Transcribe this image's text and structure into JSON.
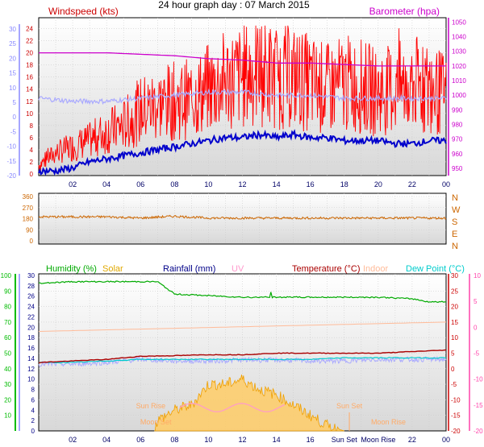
{
  "title": "24 hour graph day : 07 March 2015",
  "colors": {
    "wind": "#ff0000",
    "gust": "#ff0000",
    "baro": "#cc00cc",
    "temp_c": "#aaaaff",
    "dir": "#cc6600",
    "humidity": "#00aa00",
    "solar": "#e0a800",
    "rain": "#000088",
    "uv": "#ff99cc",
    "temperature": "#aa0000",
    "indoor": "#ffbb99",
    "dewpoint": "#00cccc",
    "avgwind": "#0000cc",
    "axis_blue": "#8888ff",
    "axis_green": "#00bb00",
    "axis_red": "#cc0000",
    "axis_pink": "#ff44aa",
    "axis_orange": "#cc6600",
    "moon": "#ffaa66"
  },
  "chart_data": [
    {
      "type": "line",
      "panel": "wind",
      "left_label": "Windspeed (kts)",
      "right_label": "Barometer (hpa)",
      "x_ticks": [
        "02",
        "04",
        "06",
        "08",
        "10",
        "12",
        "14",
        "16",
        "18",
        "20",
        "22",
        "00"
      ],
      "left_red_ticks": [
        0,
        2,
        4,
        6,
        8,
        10,
        12,
        14,
        16,
        18,
        20,
        22,
        24
      ],
      "left_blue_ticks": [
        -20,
        -15,
        -10,
        -5,
        0,
        5,
        10,
        15,
        20,
        25,
        30
      ],
      "right_ticks": [
        950,
        960,
        970,
        980,
        990,
        1000,
        1010,
        1020,
        1030,
        1040,
        1050
      ],
      "ylim_wind": [
        0,
        25
      ],
      "ylim_baro": [
        945,
        1053
      ],
      "series": [
        {
          "key": "gust",
          "hours": [
            0,
            1,
            2,
            3,
            4,
            5,
            6,
            7,
            8,
            9,
            10,
            11,
            12,
            13,
            14,
            15,
            16,
            17,
            18,
            19,
            20,
            21,
            22,
            23,
            24
          ],
          "values": [
            1.5,
            3.5,
            4.5,
            5.5,
            7,
            8,
            10.5,
            11.5,
            12,
            12.5,
            14,
            15.5,
            16,
            17,
            16,
            16,
            15,
            14,
            15,
            14.5,
            13.5,
            14,
            15,
            14,
            13
          ]
        },
        {
          "key": "avgwind",
          "hours": [
            0,
            1,
            2,
            3,
            4,
            5,
            6,
            7,
            8,
            9,
            10,
            11,
            12,
            13,
            14,
            15,
            16,
            17,
            18,
            19,
            20,
            21,
            22,
            23,
            24
          ],
          "values": [
            0.5,
            0.5,
            1,
            2,
            2.5,
            3,
            3.5,
            4,
            4.5,
            5,
            5.5,
            6,
            6,
            6.5,
            6,
            6.5,
            6,
            6,
            5.5,
            5.5,
            5.5,
            5,
            5,
            5.5,
            5.5
          ]
        },
        {
          "key": "baro",
          "hours": [
            0,
            2,
            4,
            6,
            8,
            10,
            12,
            14,
            16,
            18,
            20,
            22,
            24
          ],
          "values": [
            1029,
            1029,
            1029,
            1028,
            1027,
            1025,
            1024,
            1022,
            1022,
            1021,
            1020,
            1020,
            1020
          ]
        },
        {
          "key": "temp_c",
          "hours": [
            0,
            2,
            4,
            6,
            8,
            10,
            12,
            14,
            16,
            18,
            20,
            22,
            24
          ],
          "values": [
            12.5,
            12,
            12,
            12.5,
            13,
            13.5,
            13.5,
            13,
            13,
            12.5,
            12.5,
            12.5,
            12.5
          ]
        }
      ]
    },
    {
      "type": "line",
      "panel": "direction",
      "right_labels": [
        "N",
        "W",
        "S",
        "E",
        "N"
      ],
      "left_ticks": [
        0,
        90,
        180,
        270,
        360
      ],
      "ylim": [
        0,
        360
      ],
      "series": [
        {
          "key": "dir",
          "hours": [
            0,
            2,
            4,
            6,
            8,
            10,
            12,
            14,
            16,
            18,
            20,
            22,
            24
          ],
          "values": [
            195,
            195,
            195,
            185,
            200,
            185,
            185,
            185,
            185,
            185,
            185,
            185,
            185
          ]
        }
      ]
    },
    {
      "type": "line",
      "panel": "weather",
      "legend": [
        {
          "key": "humidity",
          "label": "Humidity (%)"
        },
        {
          "key": "solar",
          "label": "Solar"
        },
        {
          "key": "rain",
          "label": "Rainfall (mm)"
        },
        {
          "key": "uv",
          "label": "UV"
        },
        {
          "key": "temperature",
          "label": "Temperature (°C)"
        },
        {
          "key": "indoor",
          "label": "Indoor"
        },
        {
          "key": "dewpoint",
          "label": "Dew Point (°C)"
        }
      ],
      "left_green_ticks": [
        10,
        20,
        30,
        40,
        50,
        60,
        70,
        80,
        90,
        100
      ],
      "left_blue_ticks": [
        0,
        2,
        4,
        6,
        8,
        10,
        12,
        14,
        16,
        18,
        20,
        22,
        24,
        26,
        28,
        30
      ],
      "right_red_ticks": [
        -20,
        -15,
        -10,
        -5,
        0,
        5,
        10,
        15,
        20,
        25,
        30
      ],
      "right_pink_ticks": [
        -20,
        -15,
        -10,
        -5,
        0,
        5,
        10
      ],
      "x_ticks": [
        "02",
        "04",
        "06",
        "08",
        "10",
        "12",
        "14",
        "16",
        "Sun Set",
        "Moon Rise",
        "22",
        "00"
      ],
      "annotations": [
        {
          "text": "Sun Rise",
          "hour": 6.6
        },
        {
          "text": "Moon Set",
          "hour": 6.9
        },
        {
          "text": "Sun Set",
          "hour": 18.3
        },
        {
          "text": "Moon Rise",
          "hour": 20.6
        }
      ],
      "series": [
        {
          "key": "humidity",
          "hours": [
            0,
            2,
            4,
            6,
            7,
            8,
            10,
            12,
            14,
            16,
            18,
            20,
            22,
            23,
            24
          ],
          "values": [
            95,
            96,
            96,
            96,
            96,
            88,
            87,
            86,
            86,
            86,
            86,
            86,
            85,
            83,
            83
          ]
        },
        {
          "key": "temperature",
          "hours": [
            0,
            2,
            4,
            6,
            8,
            10,
            12,
            14,
            16,
            18,
            20,
            22,
            24
          ],
          "values": [
            2,
            2.5,
            3,
            4,
            4.2,
            4.5,
            4.5,
            5,
            5,
            5,
            5,
            5.5,
            6
          ]
        },
        {
          "key": "dewpoint",
          "hours": [
            0,
            2,
            4,
            6,
            8,
            10,
            12,
            14,
            16,
            18,
            20,
            22,
            24
          ],
          "values": [
            2,
            2,
            2.5,
            3,
            3,
            3,
            3,
            3,
            3,
            3.5,
            3.5,
            3.5,
            3.5
          ]
        },
        {
          "key": "indoor",
          "hours": [
            0,
            4,
            8,
            12,
            16,
            20,
            24
          ],
          "values": [
            12,
            12.5,
            13,
            13.5,
            14,
            14.5,
            15
          ]
        },
        {
          "key": "dewtmp",
          "hours": [
            0,
            2,
            4,
            6,
            8,
            10,
            12,
            14,
            16,
            18,
            20,
            22,
            24
          ],
          "values": [
            1.5,
            1.5,
            2,
            3,
            2.5,
            2.5,
            2.8,
            2.8,
            2.5,
            2.5,
            3,
            3,
            3
          ]
        },
        {
          "key": "solar",
          "hours": [
            6.8,
            7,
            8,
            9,
            10,
            11,
            12,
            13,
            14,
            15,
            16,
            17,
            18
          ],
          "values": [
            0,
            2,
            4,
            5,
            9,
            9,
            10,
            8,
            7,
            5,
            3,
            1,
            0
          ]
        }
      ]
    }
  ]
}
